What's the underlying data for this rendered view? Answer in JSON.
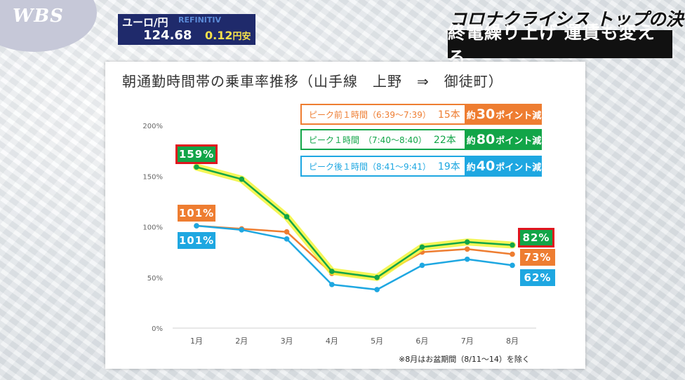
{
  "broadcast": {
    "logo": "WBS",
    "ticker": {
      "label": "ユーロ/円",
      "brand": "REFINITIV",
      "price": "124.68",
      "change": "0.12",
      "direction": "円安"
    },
    "headline_top": "コロナクライシス トップの決断",
    "headline_main": "終電繰り上げ 運賃も変える"
  },
  "chart_data": {
    "type": "line",
    "title": "朝通勤時間帯の乗車率推移（山手線　上野　⇒　御徒町）",
    "categories": [
      "1月",
      "2月",
      "3月",
      "4月",
      "5月",
      "6月",
      "7月",
      "8月"
    ],
    "yticks": [
      "0%",
      "50%",
      "100%",
      "150%",
      "200%"
    ],
    "ylim": [
      0,
      200
    ],
    "series": [
      {
        "name": "ピーク前１時間（6:39〜7:39）",
        "trains": "15本",
        "reduction_prefix": "約",
        "reduction_num": "30",
        "reduction_suffix": "ポイント減",
        "color": "#ee7d31",
        "values": [
          101,
          98,
          95,
          54,
          50,
          75,
          78,
          73
        ],
        "start_label": "101%",
        "end_label": "73%"
      },
      {
        "name": "ピーク１時間　（7:40〜8:40）",
        "trains": "22本",
        "reduction_prefix": "約",
        "reduction_num": "80",
        "reduction_suffix": "ポイント減",
        "color": "#12a548",
        "values": [
          159,
          147,
          110,
          56,
          50,
          80,
          85,
          82
        ],
        "start_label": "159%",
        "end_label": "82%"
      },
      {
        "name": "ピーク後１時間（8:41〜9:41）",
        "trains": "19本",
        "reduction_prefix": "約",
        "reduction_num": "40",
        "reduction_suffix": "ポイント減",
        "color": "#1ea7e1",
        "values": [
          101,
          97,
          88,
          43,
          38,
          62,
          68,
          62
        ],
        "start_label": "101%",
        "end_label": "62%"
      }
    ],
    "footnote": "※8月はお盆期間（8/11〜14）を除く",
    "grid": false
  }
}
